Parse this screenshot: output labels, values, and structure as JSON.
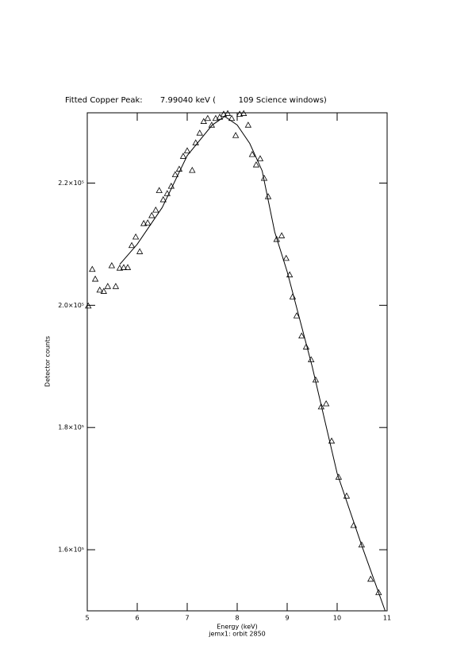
{
  "chart_data": {
    "type": "scatter",
    "title": "Fitted Copper Peak:       7.99040 keV (         109 Science windows)",
    "xlabel": "Energy (keV)",
    "subtitle": "jemx1: orbit 2850",
    "ylabel": "Detector counts",
    "xlim": [
      5,
      11
    ],
    "xticks": [
      5,
      6,
      7,
      8,
      9,
      10,
      11
    ],
    "ylim": [
      150000,
      231500
    ],
    "yticks": [
      {
        "value": 160000,
        "label": "1.6×10⁵"
      },
      {
        "value": 180000,
        "label": "1.8×10⁵"
      },
      {
        "value": 200000,
        "label": "2.0×10⁵"
      },
      {
        "value": 220000,
        "label": "2.2×10⁵"
      }
    ],
    "color": "#000000",
    "x": [
      5.02,
      5.1,
      5.16,
      5.25,
      5.33,
      5.41,
      5.49,
      5.57,
      5.65,
      5.73,
      5.81,
      5.89,
      5.97,
      6.05,
      6.13,
      6.21,
      6.29,
      6.37,
      6.44,
      6.52,
      6.6,
      6.68,
      6.76,
      6.84,
      6.92,
      7.0,
      7.1,
      7.17,
      7.25,
      7.33,
      7.41,
      7.49,
      7.57,
      7.65,
      7.73,
      7.81,
      7.89,
      7.97,
      8.05,
      8.13,
      8.22,
      8.3,
      8.38,
      8.46,
      8.54,
      8.62,
      8.79,
      8.89,
      8.98,
      9.05,
      9.11,
      9.19,
      9.29,
      9.38,
      9.48,
      9.57,
      9.68,
      9.78,
      9.89,
      10.03,
      10.19,
      10.33,
      10.49,
      10.67,
      10.83
    ],
    "values": [
      199900,
      205900,
      204300,
      202500,
      202300,
      203100,
      206500,
      203100,
      206100,
      206200,
      206200,
      209800,
      211200,
      208800,
      213400,
      213500,
      214700,
      215600,
      218800,
      217300,
      218300,
      219500,
      221400,
      222300,
      224400,
      225300,
      222100,
      226600,
      228200,
      230100,
      230600,
      229500,
      230600,
      230800,
      231300,
      231400,
      230600,
      227800,
      231300,
      231400,
      229500,
      224700,
      223000,
      224000,
      220800,
      217800,
      210800,
      211400,
      207700,
      205000,
      201400,
      198300,
      195000,
      193200,
      191100,
      187800,
      183400,
      183900,
      177800,
      171900,
      168800,
      164000,
      160800,
      155200,
      153000
    ],
    "fit": {
      "x": [
        5.65,
        6.0,
        6.5,
        7.0,
        7.5,
        7.75,
        8.0,
        8.25,
        8.5,
        8.75,
        9.0,
        9.5,
        10.0,
        10.5,
        10.96
      ],
      "values": [
        206700,
        210000,
        216000,
        224500,
        229500,
        230900,
        229500,
        226500,
        222000,
        212000,
        205500,
        190000,
        172500,
        160500,
        150000
      ]
    }
  }
}
